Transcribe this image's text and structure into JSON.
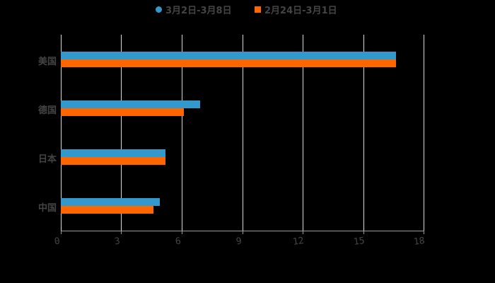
{
  "chart_data": {
    "type": "bar",
    "orientation": "horizontal",
    "title": "",
    "categories": [
      "美国",
      "德国",
      "日本",
      "中国"
    ],
    "series": [
      {
        "name": "3月2日-3月8日",
        "color": "#3399cc",
        "values": [
          16.6,
          6.9,
          5.2,
          4.9
        ]
      },
      {
        "name": "2月24日-3月1日",
        "color": "#ff6600",
        "values": [
          16.6,
          6.1,
          5.2,
          4.6
        ]
      }
    ],
    "xlabel": "",
    "ylabel": "",
    "xlim": [
      0,
      18
    ],
    "xticks": [
      "0",
      "3",
      "6",
      "9",
      "12",
      "15",
      "18"
    ],
    "grid": true,
    "legend_position": "top"
  },
  "legend": {
    "series1": "3月2日-3月8日",
    "series2": "2月24日-3月1日"
  },
  "axis": {
    "ticks": [
      "0",
      "3",
      "6",
      "9",
      "12",
      "15",
      "18"
    ]
  },
  "categories": [
    "美国",
    "德国",
    "日本",
    "中国"
  ]
}
